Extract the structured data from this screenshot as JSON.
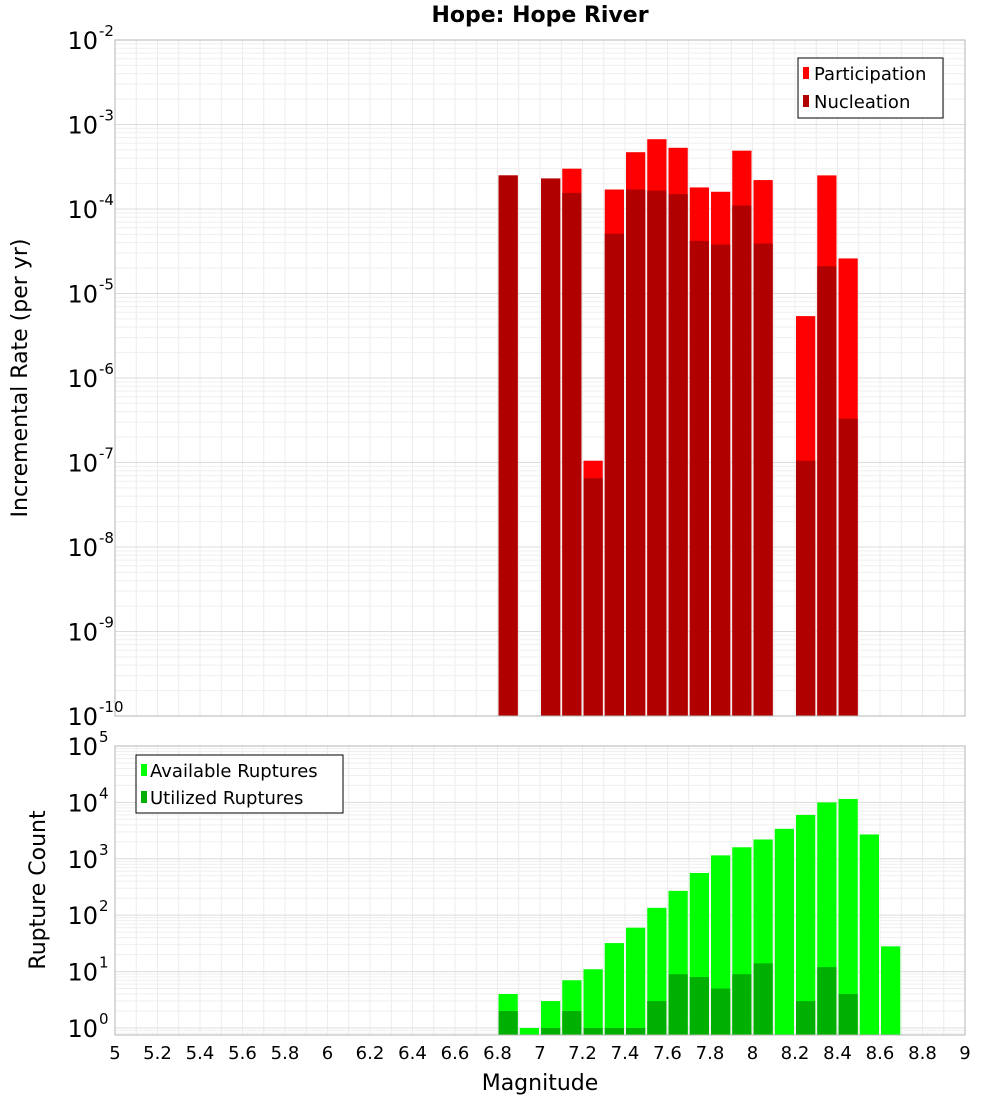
{
  "chart_data": [
    {
      "type": "bar",
      "title": "Hope: Hope River",
      "xlabel": "",
      "ylabel": "Incremental Rate (per yr)",
      "yscale": "log",
      "ylim": [
        1e-10,
        0.01
      ],
      "xlim": [
        5,
        9
      ],
      "grid": true,
      "legend_position": "top-right",
      "series": [
        {
          "name": "Participation",
          "color": "#ff0000",
          "x": [
            6.85,
            7.05,
            7.15,
            7.25,
            7.35,
            7.45,
            7.55,
            7.65,
            7.75,
            7.85,
            7.95,
            8.05,
            8.25,
            8.35,
            8.45
          ],
          "values": [
            0.00025,
            0.00023,
            0.0003,
            1.05e-07,
            0.00017,
            0.00047,
            0.00067,
            0.00053,
            0.00018,
            0.00016,
            0.00049,
            0.00022,
            5.4e-06,
            0.00025,
            2.6e-05
          ]
        },
        {
          "name": "Nucleation",
          "color": "#b00000",
          "x": [
            6.85,
            7.05,
            7.15,
            7.25,
            7.35,
            7.45,
            7.55,
            7.65,
            7.75,
            7.85,
            7.95,
            8.05,
            8.25,
            8.35,
            8.45
          ],
          "values": [
            0.00025,
            0.00023,
            0.000155,
            6.5e-08,
            5.1e-05,
            0.00017,
            0.000165,
            0.00015,
            4.2e-05,
            3.8e-05,
            0.00011,
            3.9e-05,
            1.05e-07,
            2.1e-05,
            3.3e-07
          ]
        }
      ]
    },
    {
      "type": "bar",
      "title": "",
      "xlabel": "Magnitude",
      "ylabel": "Rupture Count",
      "yscale": "log",
      "ylim": [
        0.75,
        100000.0
      ],
      "xlim": [
        5,
        9
      ],
      "grid": true,
      "legend_position": "top-left",
      "x_ticks": [
        "5",
        "5.2",
        "5.4",
        "5.6",
        "5.8",
        "6",
        "6.2",
        "6.4",
        "6.6",
        "6.8",
        "7",
        "7.2",
        "7.4",
        "7.6",
        "7.8",
        "8",
        "8.2",
        "8.4",
        "8.6",
        "8.8",
        "9"
      ],
      "series": [
        {
          "name": "Available Ruptures",
          "color": "#00ff00",
          "x": [
            6.85,
            6.95,
            7.05,
            7.15,
            7.25,
            7.35,
            7.45,
            7.55,
            7.65,
            7.75,
            7.85,
            7.95,
            8.05,
            8.15,
            8.25,
            8.35,
            8.45,
            8.55,
            8.65
          ],
          "values": [
            4,
            1,
            3,
            7,
            11,
            32,
            60,
            135,
            270,
            560,
            1150,
            1600,
            2200,
            3400,
            6000,
            10000,
            11500,
            2700,
            28
          ]
        },
        {
          "name": "Utilized Ruptures",
          "color": "#00b000",
          "x": [
            6.85,
            7.05,
            7.15,
            7.25,
            7.35,
            7.45,
            7.55,
            7.65,
            7.75,
            7.85,
            7.95,
            8.05,
            8.25,
            8.35,
            8.45
          ],
          "values": [
            2,
            1,
            2,
            1,
            1,
            1,
            3,
            9,
            8,
            5,
            9,
            14,
            3,
            12,
            4
          ]
        }
      ]
    }
  ]
}
